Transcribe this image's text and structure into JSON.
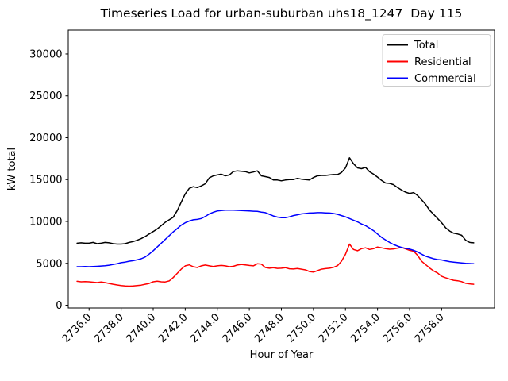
{
  "chart_data": {
    "type": "line",
    "title": "Timeseries Load for urban-suburban uhs18_1247  Day 115",
    "xlabel": "Hour of Year",
    "ylabel": "kW total",
    "xlim": [
      2734.7,
      2761.3
    ],
    "ylim": [
      -330,
      32840
    ],
    "grid": false,
    "yticks": [
      0,
      5000,
      10000,
      15000,
      20000,
      25000,
      30000
    ],
    "xticks": [
      2736,
      2738,
      2740,
      2742,
      2744,
      2746,
      2748,
      2750,
      2752,
      2754,
      2756,
      2758
    ],
    "xtick_labels": [
      "2736.0",
      "2738.0",
      "2740.0",
      "2742.0",
      "2744.0",
      "2746.0",
      "2748.0",
      "2750.0",
      "2752.0",
      "2754.0",
      "2756.0",
      "2758.0"
    ],
    "x_hours_start": 2735.25,
    "x_hours_step": 0.25,
    "legend": {
      "position": "upper right",
      "entries": [
        "Total",
        "Residential",
        "Commercial"
      ]
    },
    "series": [
      {
        "name": "Total",
        "color": "#000000",
        "values": [
          7400,
          7450,
          7400,
          7400,
          7500,
          7350,
          7400,
          7500,
          7450,
          7350,
          7300,
          7300,
          7350,
          7500,
          7600,
          7750,
          7950,
          8200,
          8500,
          8800,
          9100,
          9500,
          9900,
          10200,
          10500,
          11300,
          12300,
          13300,
          13950,
          14150,
          14050,
          14250,
          14500,
          15200,
          15450,
          15550,
          15650,
          15450,
          15550,
          15950,
          16050,
          16000,
          15950,
          15800,
          15900,
          16050,
          15450,
          15350,
          15250,
          14950,
          14950,
          14850,
          14950,
          15000,
          15000,
          15150,
          15050,
          15000,
          14950,
          15250,
          15450,
          15500,
          15500,
          15550,
          15600,
          15600,
          15850,
          16400,
          17600,
          16900,
          16400,
          16300,
          16450,
          15950,
          15650,
          15300,
          14900,
          14600,
          14550,
          14400,
          14050,
          13750,
          13500,
          13350,
          13450,
          13100,
          12600,
          12050,
          11350,
          10850,
          10350,
          9850,
          9250,
          8850,
          8600,
          8500,
          8350,
          7750,
          7500,
          7450
        ]
      },
      {
        "name": "Residential",
        "color": "#ff0000",
        "values": [
          2850,
          2800,
          2820,
          2800,
          2750,
          2700,
          2780,
          2700,
          2600,
          2500,
          2420,
          2350,
          2300,
          2280,
          2300,
          2350,
          2400,
          2500,
          2600,
          2800,
          2870,
          2800,
          2780,
          2900,
          3300,
          3800,
          4300,
          4700,
          4820,
          4600,
          4500,
          4700,
          4800,
          4700,
          4620,
          4700,
          4750,
          4700,
          4600,
          4650,
          4800,
          4870,
          4820,
          4750,
          4700,
          4950,
          4900,
          4500,
          4420,
          4480,
          4400,
          4420,
          4480,
          4350,
          4320,
          4380,
          4300,
          4220,
          4020,
          3950,
          4120,
          4300,
          4370,
          4420,
          4520,
          4720,
          5250,
          6100,
          7300,
          6650,
          6500,
          6750,
          6850,
          6650,
          6750,
          6950,
          6850,
          6750,
          6680,
          6720,
          6820,
          6900,
          6720,
          6550,
          6450,
          5950,
          5250,
          4850,
          4450,
          4100,
          3850,
          3450,
          3280,
          3120,
          2980,
          2920,
          2820,
          2620,
          2550,
          2500
        ]
      },
      {
        "name": "Commercial",
        "color": "#0000ff",
        "values": [
          4600,
          4600,
          4620,
          4600,
          4620,
          4650,
          4680,
          4720,
          4780,
          4870,
          4960,
          5080,
          5150,
          5250,
          5320,
          5420,
          5550,
          5750,
          6100,
          6500,
          6950,
          7400,
          7850,
          8300,
          8750,
          9150,
          9550,
          9850,
          10050,
          10200,
          10250,
          10350,
          10600,
          10900,
          11100,
          11250,
          11300,
          11350,
          11350,
          11350,
          11330,
          11300,
          11280,
          11250,
          11220,
          11200,
          11120,
          11050,
          10850,
          10650,
          10520,
          10450,
          10450,
          10550,
          10700,
          10800,
          10900,
          10950,
          11000,
          11020,
          11050,
          11050,
          11020,
          11000,
          10950,
          10850,
          10700,
          10550,
          10350,
          10150,
          9950,
          9700,
          9500,
          9200,
          8900,
          8500,
          8100,
          7800,
          7500,
          7250,
          7050,
          6900,
          6780,
          6700,
          6550,
          6350,
          6100,
          5850,
          5700,
          5550,
          5450,
          5400,
          5300,
          5200,
          5150,
          5100,
          5050,
          5000,
          4980,
          4950
        ]
      }
    ]
  }
}
